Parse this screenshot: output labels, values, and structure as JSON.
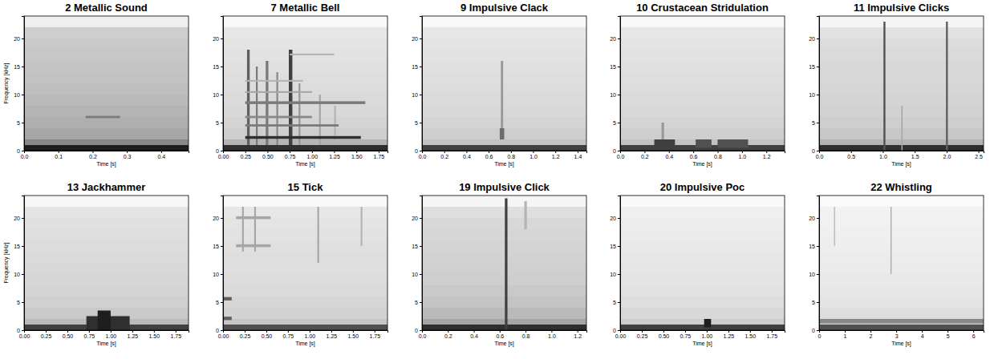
{
  "chart_data": [
    {
      "type": "heatmap",
      "title": "2 Metallic Sound",
      "xlabel": "Time [s]",
      "ylabel": "Frequency [kHz]",
      "xlim": [
        0,
        0.48
      ],
      "ylim": [
        0,
        24
      ],
      "zlim": [
        0,
        1
      ],
      "xticks": [
        {
          "value": 0,
          "label": "0.0"
        },
        0.1,
        0.2,
        0.3,
        0.4
      ],
      "yticks": [
        0,
        5,
        10,
        15,
        20
      ],
      "bands": [
        0,
        1,
        2,
        4,
        6,
        8,
        10,
        12,
        14,
        16,
        18,
        20,
        22,
        24
      ],
      "band_values": [
        0.9,
        0.55,
        0.45,
        0.42,
        0.4,
        0.38,
        0.36,
        0.35,
        0.34,
        0.33,
        0.32,
        0.3,
        0.12
      ],
      "events": [
        {
          "x": [
            0.18,
            0.28
          ],
          "y": [
            5.8,
            6.2
          ],
          "value": 0.6
        }
      ]
    },
    {
      "type": "heatmap",
      "title": "7 Metallic Bell",
      "xlabel": "Time [s]",
      "xlim": [
        0,
        1.85
      ],
      "ylim": [
        0,
        24
      ],
      "zlim": [
        0,
        1
      ],
      "xticks": [
        {
          "value": 0,
          "label": "0.00"
        },
        0.25,
        {
          "value": 0.5,
          "label": "0.50"
        },
        0.75,
        {
          "value": 1,
          "label": "1.00"
        },
        1.25,
        {
          "value": 1.5,
          "label": "1.50"
        },
        1.75
      ],
      "yticks": [
        0,
        5,
        10,
        15,
        20
      ],
      "bands": [
        0,
        1,
        2,
        4,
        6,
        8,
        10,
        12,
        14,
        16,
        18,
        20,
        22,
        24
      ],
      "band_values": [
        0.85,
        0.4,
        0.3,
        0.27,
        0.25,
        0.24,
        0.23,
        0.22,
        0.21,
        0.2,
        0.19,
        0.17,
        0.06
      ],
      "events": [
        {
          "x": [
            0.27,
            0.3
          ],
          "y": [
            1,
            18
          ],
          "value": 0.7
        },
        {
          "x": [
            0.37,
            0.39
          ],
          "y": [
            1,
            15
          ],
          "value": 0.6
        },
        {
          "x": [
            0.48,
            0.51
          ],
          "y": [
            1,
            16
          ],
          "value": 0.6
        },
        {
          "x": [
            0.6,
            0.62
          ],
          "y": [
            1,
            14
          ],
          "value": 0.55
        },
        {
          "x": [
            0.74,
            0.78
          ],
          "y": [
            1,
            18
          ],
          "value": 0.8
        },
        {
          "x": [
            0.85,
            0.87
          ],
          "y": [
            1,
            12
          ],
          "value": 0.5
        },
        {
          "x": [
            1.08,
            1.1
          ],
          "y": [
            1,
            10
          ],
          "value": 0.45
        },
        {
          "x": [
            1.25,
            1.27
          ],
          "y": [
            1,
            8
          ],
          "value": 0.4
        },
        {
          "x": [
            0.25,
            1.55
          ],
          "y": [
            2.1,
            2.6
          ],
          "value": 0.85
        },
        {
          "x": [
            0.25,
            1.3
          ],
          "y": [
            4.3,
            4.7
          ],
          "value": 0.6
        },
        {
          "x": [
            0.25,
            1.0
          ],
          "y": [
            5.8,
            6.2
          ],
          "value": 0.55
        },
        {
          "x": [
            0.25,
            1.6
          ],
          "y": [
            8.3,
            8.8
          ],
          "value": 0.6
        },
        {
          "x": [
            0.25,
            1.0
          ],
          "y": [
            10.3,
            10.6
          ],
          "value": 0.45
        },
        {
          "x": [
            0.25,
            0.9
          ],
          "y": [
            12.3,
            12.6
          ],
          "value": 0.4
        },
        {
          "x": [
            0.75,
            1.25
          ],
          "y": [
            17.0,
            17.3
          ],
          "value": 0.4
        }
      ]
    },
    {
      "type": "heatmap",
      "title": "9 Impulsive Clack",
      "xlabel": "Time [s]",
      "xlim": [
        0,
        1.48
      ],
      "ylim": [
        0,
        24
      ],
      "zlim": [
        0,
        1
      ],
      "xticks": [
        {
          "value": 0,
          "label": "0.0"
        },
        0.2,
        0.4,
        0.6,
        0.8,
        {
          "value": 1,
          "label": "1.0"
        },
        1.2,
        1.4
      ],
      "yticks": [
        0,
        5,
        10,
        15,
        20
      ],
      "bands": [
        0,
        1,
        2,
        4,
        6,
        8,
        10,
        12,
        14,
        16,
        18,
        20,
        22,
        24
      ],
      "band_values": [
        0.8,
        0.35,
        0.3,
        0.27,
        0.25,
        0.24,
        0.23,
        0.22,
        0.21,
        0.2,
        0.19,
        0.17,
        0.06
      ],
      "events": [
        {
          "x": [
            0.71,
            0.73
          ],
          "y": [
            2,
            16
          ],
          "value": 0.5
        },
        {
          "x": [
            0.7,
            0.74
          ],
          "y": [
            2,
            4
          ],
          "value": 0.65
        }
      ]
    },
    {
      "type": "heatmap",
      "title": "10 Crustacean Stridulation",
      "xlabel": "Time [s]",
      "xlim": [
        0,
        1.35
      ],
      "ylim": [
        0,
        24
      ],
      "zlim": [
        0,
        1
      ],
      "xticks": [
        {
          "value": 0,
          "label": "0.0"
        },
        0.2,
        0.4,
        0.6,
        0.8,
        {
          "value": 1,
          "label": "1.0"
        },
        1.2
      ],
      "yticks": [
        0,
        5,
        10,
        15,
        20
      ],
      "bands": [
        0,
        1,
        2,
        4,
        6,
        8,
        10,
        12,
        14,
        16,
        18,
        20,
        22,
        24
      ],
      "band_values": [
        0.8,
        0.35,
        0.3,
        0.27,
        0.25,
        0.24,
        0.23,
        0.22,
        0.21,
        0.2,
        0.19,
        0.17,
        0.06
      ],
      "events": [
        {
          "x": [
            0.28,
            0.45
          ],
          "y": [
            0.5,
            2
          ],
          "value": 0.8
        },
        {
          "x": [
            0.62,
            0.75
          ],
          "y": [
            0.5,
            2
          ],
          "value": 0.75
        },
        {
          "x": [
            0.8,
            1.05
          ],
          "y": [
            0.5,
            2
          ],
          "value": 0.75
        },
        {
          "x": [
            0.34,
            0.36
          ],
          "y": [
            2,
            5
          ],
          "value": 0.5
        }
      ]
    },
    {
      "type": "heatmap",
      "title": "11 Impulsive Clicks",
      "xlabel": "Time [s]",
      "xlim": [
        0,
        2.58
      ],
      "ylim": [
        0,
        24
      ],
      "zlim": [
        0,
        1
      ],
      "xticks": [
        {
          "value": 0,
          "label": "0.0"
        },
        0.5,
        {
          "value": 1,
          "label": "1.0"
        },
        1.5,
        {
          "value": 2,
          "label": "2.0"
        },
        2.5
      ],
      "yticks": [
        0,
        5,
        10,
        15,
        20
      ],
      "bands": [
        0,
        1,
        2,
        4,
        6,
        8,
        10,
        12,
        14,
        16,
        18,
        20,
        22,
        24
      ],
      "band_values": [
        0.85,
        0.4,
        0.33,
        0.3,
        0.28,
        0.27,
        0.26,
        0.25,
        0.25,
        0.24,
        0.23,
        0.2,
        0.08
      ],
      "events": [
        {
          "x": [
            1.01,
            1.04
          ],
          "y": [
            0,
            23
          ],
          "value": 0.75
        },
        {
          "x": [
            1.99,
            2.02
          ],
          "y": [
            0,
            23
          ],
          "value": 0.7
        },
        {
          "x": [
            1.29,
            1.31
          ],
          "y": [
            0,
            8
          ],
          "value": 0.45
        }
      ]
    },
    {
      "type": "heatmap",
      "title": "13 Jackhammer",
      "xlabel": "Time [s]",
      "ylabel": "Frequency [kHz]",
      "xlim": [
        0,
        1.9
      ],
      "ylim": [
        0,
        24
      ],
      "zlim": [
        0,
        1
      ],
      "xticks": [
        {
          "value": 0,
          "label": "0.00"
        },
        0.25,
        {
          "value": 0.5,
          "label": "0.50"
        },
        0.75,
        {
          "value": 1,
          "label": "1.00"
        },
        1.25,
        {
          "value": 1.5,
          "label": "1.50"
        },
        1.75
      ],
      "yticks": [
        0,
        5,
        10,
        15,
        20
      ],
      "bands": [
        0,
        1,
        2,
        4,
        6,
        8,
        10,
        12,
        14,
        16,
        18,
        20,
        22,
        24
      ],
      "band_values": [
        0.8,
        0.38,
        0.32,
        0.29,
        0.27,
        0.26,
        0.25,
        0.24,
        0.23,
        0.22,
        0.21,
        0.19,
        0.07
      ],
      "events": [
        {
          "x": [
            0.72,
            1.22
          ],
          "y": [
            0,
            2.5
          ],
          "value": 0.85
        },
        {
          "x": [
            0.85,
            1.0
          ],
          "y": [
            0,
            3.5
          ],
          "value": 0.9
        }
      ]
    },
    {
      "type": "heatmap",
      "title": "15 Tick",
      "xlabel": "Time [s]",
      "xlim": [
        0,
        1.9
      ],
      "ylim": [
        0,
        24
      ],
      "zlim": [
        0,
        1
      ],
      "xticks": [
        {
          "value": 0,
          "label": "0.00"
        },
        0.25,
        {
          "value": 0.5,
          "label": "0.50"
        },
        0.75,
        {
          "value": 1,
          "label": "1.00"
        },
        1.25,
        {
          "value": 1.5,
          "label": "1.50"
        },
        1.75
      ],
      "yticks": [
        0,
        5,
        10,
        15,
        20
      ],
      "bands": [
        0,
        1,
        2,
        4,
        6,
        8,
        10,
        12,
        14,
        16,
        18,
        20,
        22,
        24
      ],
      "band_values": [
        0.75,
        0.33,
        0.28,
        0.26,
        0.24,
        0.23,
        0.22,
        0.22,
        0.21,
        0.2,
        0.19,
        0.17,
        0.06
      ],
      "events": [
        {
          "x": [
            0.15,
            0.55
          ],
          "y": [
            14.8,
            15.3
          ],
          "value": 0.45
        },
        {
          "x": [
            0.15,
            0.55
          ],
          "y": [
            19.8,
            20.3
          ],
          "value": 0.45
        },
        {
          "x": [
            0.0,
            0.1
          ],
          "y": [
            1.8,
            2.4
          ],
          "value": 0.7
        },
        {
          "x": [
            0.0,
            0.1
          ],
          "y": [
            5.3,
            5.9
          ],
          "value": 0.7
        },
        {
          "x": [
            0.22,
            0.24
          ],
          "y": [
            14,
            22
          ],
          "value": 0.45
        },
        {
          "x": [
            0.36,
            0.38
          ],
          "y": [
            14,
            22
          ],
          "value": 0.45
        },
        {
          "x": [
            1.09,
            1.11
          ],
          "y": [
            12,
            22
          ],
          "value": 0.45
        },
        {
          "x": [
            1.59,
            1.61
          ],
          "y": [
            15,
            22
          ],
          "value": 0.4
        }
      ]
    },
    {
      "type": "heatmap",
      "title": "19 Impulsive Click",
      "xlabel": "Time [s]",
      "xlim": [
        0,
        1.27
      ],
      "ylim": [
        0,
        24
      ],
      "zlim": [
        0,
        1
      ],
      "xticks": [
        {
          "value": 0,
          "label": "0.0"
        },
        0.2,
        0.4,
        0.6,
        0.8,
        {
          "value": 1,
          "label": "1.0"
        },
        1.2
      ],
      "yticks": [
        0,
        5,
        10,
        15,
        20
      ],
      "bands": [
        0,
        1,
        2,
        4,
        6,
        8,
        10,
        12,
        14,
        16,
        18,
        20,
        22,
        24
      ],
      "band_values": [
        0.85,
        0.45,
        0.38,
        0.34,
        0.32,
        0.3,
        0.29,
        0.28,
        0.27,
        0.26,
        0.25,
        0.22,
        0.08
      ],
      "events": [
        {
          "x": [
            0.64,
            0.66
          ],
          "y": [
            0,
            23.5
          ],
          "value": 0.8
        },
        {
          "x": [
            0.79,
            0.81
          ],
          "y": [
            18,
            23
          ],
          "value": 0.4
        }
      ]
    },
    {
      "type": "heatmap",
      "title": "20 Impulsive Poc",
      "xlabel": "Time [s]",
      "xlim": [
        0,
        1.9
      ],
      "ylim": [
        0,
        24
      ],
      "zlim": [
        0,
        1
      ],
      "xticks": [
        {
          "value": 0,
          "label": "0.00"
        },
        0.25,
        {
          "value": 0.5,
          "label": "0.50"
        },
        0.75,
        {
          "value": 1,
          "label": "1.00"
        },
        1.25,
        {
          "value": 1.5,
          "label": "1.50"
        },
        1.75
      ],
      "yticks": [
        0,
        5,
        10,
        15,
        20
      ],
      "bands": [
        0,
        1,
        2,
        4,
        6,
        8,
        10,
        12,
        14,
        16,
        18,
        20,
        22,
        24
      ],
      "band_values": [
        0.8,
        0.3,
        0.25,
        0.22,
        0.2,
        0.19,
        0.18,
        0.17,
        0.16,
        0.15,
        0.14,
        0.12,
        0.05
      ],
      "events": [
        {
          "x": [
            0.97,
            1.05
          ],
          "y": [
            0.5,
            2
          ],
          "value": 0.9
        }
      ]
    },
    {
      "type": "heatmap",
      "title": "22 Whistling",
      "xlabel": "Time [s]",
      "xlim": [
        0,
        6.4
      ],
      "ylim": [
        0,
        24
      ],
      "zlim": [
        0,
        1
      ],
      "xticks": [
        0,
        1,
        2,
        3,
        4,
        5,
        6
      ],
      "yticks": [
        0,
        5,
        10,
        15,
        20
      ],
      "bands": [
        0,
        1,
        2,
        4,
        6,
        8,
        10,
        12,
        14,
        16,
        18,
        20,
        22,
        24
      ],
      "band_values": [
        0.75,
        0.3,
        0.22,
        0.19,
        0.17,
        0.16,
        0.15,
        0.14,
        0.13,
        0.12,
        0.11,
        0.1,
        0.04
      ],
      "events": [
        {
          "x": [
            0,
            6.4
          ],
          "y": [
            1.2,
            2
          ],
          "value": 0.55
        },
        {
          "x": [
            0.58,
            0.62
          ],
          "y": [
            15,
            22
          ],
          "value": 0.4
        },
        {
          "x": [
            2.78,
            2.82
          ],
          "y": [
            10,
            22
          ],
          "value": 0.45
        }
      ]
    }
  ]
}
